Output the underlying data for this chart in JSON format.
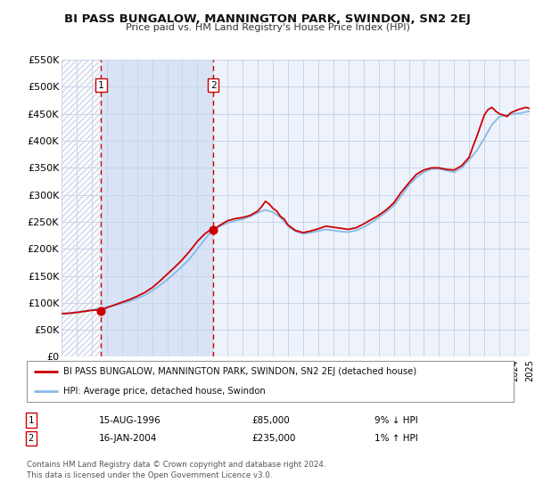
{
  "title": "BI PASS BUNGALOW, MANNINGTON PARK, SWINDON, SN2 2EJ",
  "subtitle": "Price paid vs. HM Land Registry's House Price Index (HPI)",
  "legend_label_red": "BI PASS BUNGALOW, MANNINGTON PARK, SWINDON, SN2 2EJ (detached house)",
  "legend_label_blue": "HPI: Average price, detached house, Swindon",
  "sale1_label": "1",
  "sale1_date": "15-AUG-1996",
  "sale1_price": "£85,000",
  "sale1_hpi": "9% ↓ HPI",
  "sale2_label": "2",
  "sale2_date": "16-JAN-2004",
  "sale2_price": "£235,000",
  "sale2_hpi": "1% ↑ HPI",
  "footnote1": "Contains HM Land Registry data © Crown copyright and database right 2024.",
  "footnote2": "This data is licensed under the Open Government Licence v3.0.",
  "sale1_x": 1996.625,
  "sale1_y": 85000,
  "sale2_x": 2004.042,
  "sale2_y": 235000,
  "xmin": 1994,
  "xmax": 2025,
  "ymin": 0,
  "ymax": 550000,
  "yticks": [
    0,
    50000,
    100000,
    150000,
    200000,
    250000,
    300000,
    350000,
    400000,
    450000,
    500000,
    550000
  ],
  "ytick_labels": [
    "£0",
    "£50K",
    "£100K",
    "£150K",
    "£200K",
    "£250K",
    "£300K",
    "£350K",
    "£400K",
    "£450K",
    "£500K",
    "£550K"
  ],
  "plot_bg_color": "#eef2fb",
  "shaded_color": "#d8e4f5",
  "hatch_color": "#c8d0e0",
  "grid_color": "#c8d4e8",
  "red_color": "#cc0000",
  "blue_color": "#88b8e8",
  "hpi_x": [
    1994,
    1994.5,
    1995,
    1995.5,
    1996,
    1996.5,
    1997,
    1997.5,
    1998,
    1998.5,
    1999,
    1999.5,
    2000,
    2000.5,
    2001,
    2001.5,
    2002,
    2002.5,
    2003,
    2003.5,
    2004,
    2004.5,
    2005,
    2005.5,
    2006,
    2006.5,
    2007,
    2007.5,
    2008,
    2008.5,
    2009,
    2009.5,
    2010,
    2010.5,
    2011,
    2011.5,
    2012,
    2012.5,
    2013,
    2013.5,
    2014,
    2014.5,
    2015,
    2015.5,
    2016,
    2016.5,
    2017,
    2017.5,
    2018,
    2018.5,
    2019,
    2019.5,
    2020,
    2020.5,
    2021,
    2021.5,
    2022,
    2022.5,
    2023,
    2023.5,
    2024,
    2024.5,
    2025
  ],
  "hpi_y": [
    80000,
    81000,
    83000,
    85000,
    87000,
    89000,
    92000,
    95000,
    99000,
    103000,
    108000,
    114000,
    122000,
    132000,
    143000,
    155000,
    168000,
    182000,
    200000,
    218000,
    235000,
    242000,
    248000,
    252000,
    255000,
    260000,
    267000,
    272000,
    268000,
    258000,
    242000,
    232000,
    228000,
    230000,
    233000,
    236000,
    234000,
    232000,
    231000,
    234000,
    240000,
    248000,
    258000,
    268000,
    280000,
    298000,
    318000,
    332000,
    342000,
    348000,
    348000,
    345000,
    342000,
    350000,
    365000,
    382000,
    405000,
    430000,
    445000,
    448000,
    450000,
    452000,
    455000
  ],
  "red_x": [
    1994,
    1994.5,
    1995,
    1995.5,
    1996,
    1996.5,
    1996.625,
    1997,
    1997.5,
    1998,
    1998.5,
    1999,
    1999.5,
    2000,
    2000.5,
    2001,
    2001.5,
    2002,
    2002.5,
    2003,
    2003.5,
    2004,
    2004.042,
    2004.5,
    2005,
    2005.5,
    2006,
    2006.5,
    2007,
    2007.25,
    2007.5,
    2007.75,
    2008,
    2008.25,
    2008.5,
    2008.75,
    2009,
    2009.5,
    2010,
    2010.5,
    2011,
    2011.5,
    2012,
    2012.5,
    2013,
    2013.5,
    2014,
    2014.5,
    2015,
    2015.5,
    2016,
    2016.5,
    2017,
    2017.5,
    2018,
    2018.5,
    2019,
    2019.5,
    2020,
    2020.5,
    2021,
    2021.25,
    2021.5,
    2021.75,
    2022,
    2022.25,
    2022.5,
    2022.75,
    2023,
    2023.25,
    2023.5,
    2023.75,
    2024,
    2024.25,
    2024.5,
    2024.75,
    2025
  ],
  "red_y": [
    80000,
    80500,
    82000,
    84000,
    86000,
    87000,
    85000,
    91000,
    96000,
    101000,
    106000,
    112000,
    119000,
    128000,
    140000,
    153000,
    166000,
    180000,
    196000,
    214000,
    228000,
    238000,
    235000,
    244000,
    252000,
    256000,
    258000,
    262000,
    270000,
    278000,
    288000,
    283000,
    275000,
    270000,
    260000,
    255000,
    244000,
    234000,
    230000,
    233000,
    237000,
    242000,
    240000,
    238000,
    236000,
    239000,
    246000,
    254000,
    262000,
    272000,
    285000,
    305000,
    322000,
    338000,
    346000,
    350000,
    350000,
    347000,
    346000,
    354000,
    370000,
    390000,
    408000,
    428000,
    448000,
    458000,
    462000,
    455000,
    450000,
    448000,
    445000,
    452000,
    455000,
    458000,
    460000,
    462000,
    460000
  ]
}
